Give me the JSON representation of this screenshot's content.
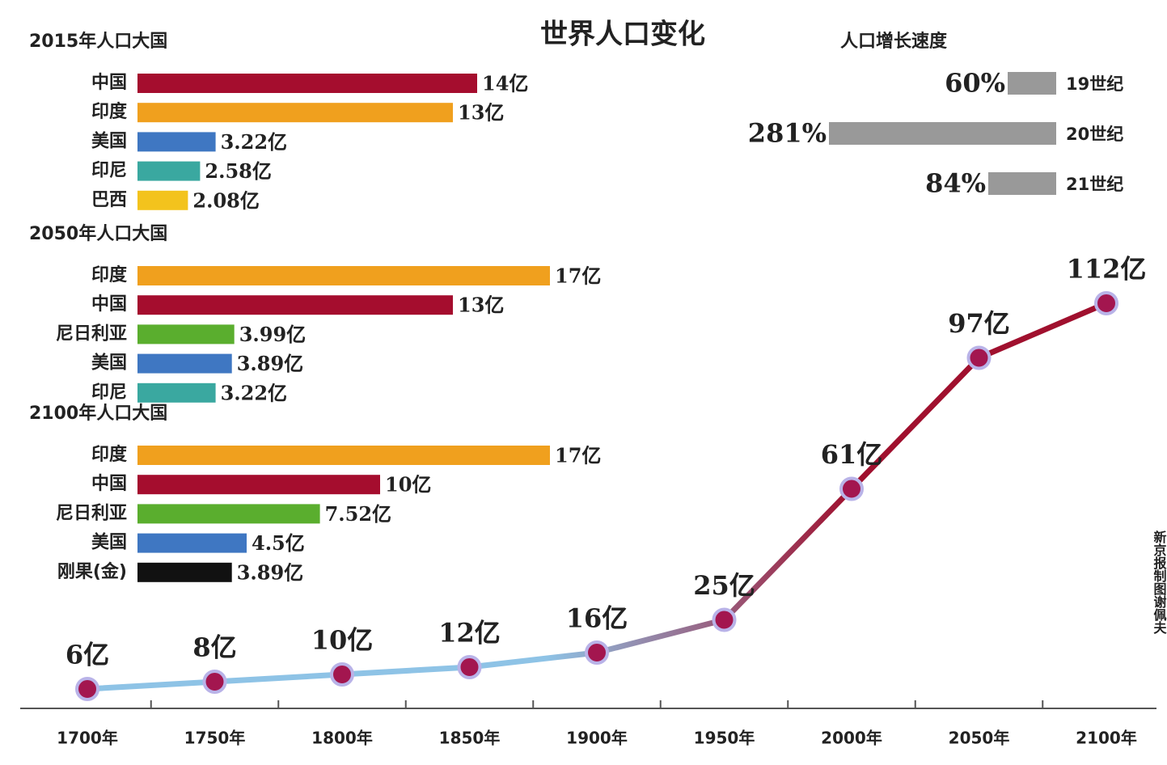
{
  "title": "世界人口变化",
  "credit": "新京报制图谢佩夫",
  "chart_data": [
    {
      "type": "hbar",
      "title": "2015年人口大国",
      "categories": [
        "中国",
        "印度",
        "美国",
        "印尼",
        "巴西"
      ],
      "values": [
        14,
        13,
        3.22,
        2.58,
        2.08
      ],
      "value_labels": [
        "14亿",
        "13亿",
        "3.22亿",
        "2.58亿",
        "2.08亿"
      ],
      "colors": [
        "#a50d2e",
        "#f0a01e",
        "#3f77c2",
        "#3aa8a0",
        "#f3c31d"
      ]
    },
    {
      "type": "hbar",
      "title": "2050年人口大国",
      "categories": [
        "印度",
        "中国",
        "尼日利亚",
        "美国",
        "印尼"
      ],
      "values": [
        17,
        13,
        3.99,
        3.89,
        3.22
      ],
      "value_labels": [
        "17亿",
        "13亿",
        "3.99亿",
        "3.89亿",
        "3.22亿"
      ],
      "colors": [
        "#f0a01e",
        "#a50d2e",
        "#5aae2e",
        "#3f77c2",
        "#3aa8a0"
      ]
    },
    {
      "type": "hbar",
      "title": "2100年人口大国",
      "categories": [
        "印度",
        "中国",
        "尼日利亚",
        "美国",
        "刚果(金)"
      ],
      "values": [
        17,
        10,
        7.52,
        4.5,
        3.89
      ],
      "value_labels": [
        "17亿",
        "10亿",
        "7.52亿",
        "4.5亿",
        "3.89亿"
      ],
      "colors": [
        "#f0a01e",
        "#a50d2e",
        "#5aae2e",
        "#3f77c2",
        "#111111"
      ]
    },
    {
      "type": "growth",
      "title": "人口增长速度",
      "categories": [
        "19世纪",
        "20世纪",
        "21世纪"
      ],
      "values": [
        60,
        281,
        84
      ],
      "value_labels": [
        "60%",
        "281%",
        "84%"
      ],
      "color": "#999999"
    },
    {
      "type": "line",
      "categories": [
        "1700年",
        "1750年",
        "1800年",
        "1850年",
        "1900年",
        "1950年",
        "2000年",
        "2050年",
        "2100年"
      ],
      "values": [
        6,
        8,
        10,
        12,
        16,
        25,
        61,
        97,
        112
      ],
      "value_labels": [
        "6亿",
        "8亿",
        "10亿",
        "12亿",
        "16亿",
        "25亿",
        "61亿",
        "97亿",
        "112亿"
      ],
      "color_start": "#8ec3e6",
      "color_end": "#a0102e",
      "marker_color": "#a3164f"
    }
  ]
}
